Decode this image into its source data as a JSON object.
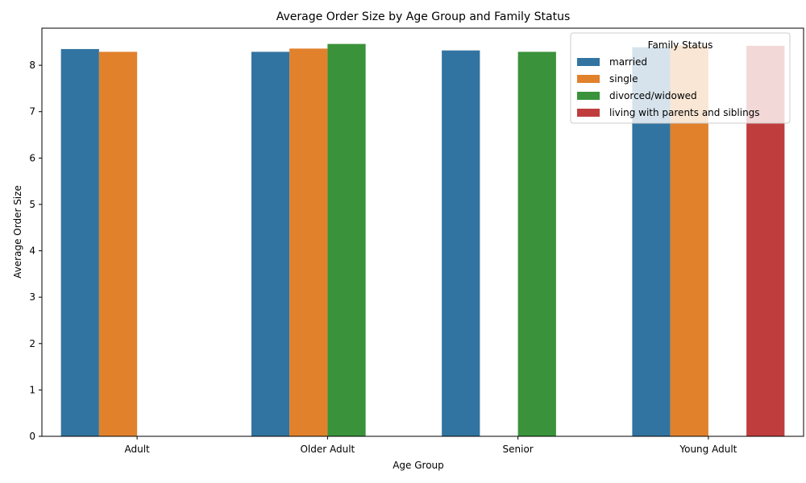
{
  "chart_data": {
    "type": "bar",
    "title": "Average Order Size by Age Group and Family Status",
    "xlabel": "Age Group",
    "ylabel": "Average Order Size",
    "ylim": [
      0,
      8.8
    ],
    "yticks": [
      "0",
      "1",
      "2",
      "3",
      "4",
      "5",
      "6",
      "7",
      "8"
    ],
    "categories": [
      "Adult",
      "Older Adult",
      "Senior",
      "Young Adult"
    ],
    "legend": {
      "title": "Family Status",
      "placement": "top-right"
    },
    "grid": false,
    "series": [
      {
        "name": "married",
        "color": "#3274a1",
        "values": [
          8.35,
          8.29,
          8.32,
          8.39
        ]
      },
      {
        "name": "single",
        "color": "#e1812c",
        "values": [
          8.29,
          8.36,
          null,
          8.43
        ]
      },
      {
        "name": "divorced/widowed",
        "color": "#3a923a",
        "values": [
          null,
          8.46,
          8.29,
          null
        ]
      },
      {
        "name": "living with parents and siblings",
        "color": "#c03d3e",
        "values": [
          null,
          null,
          null,
          8.42
        ]
      }
    ]
  }
}
